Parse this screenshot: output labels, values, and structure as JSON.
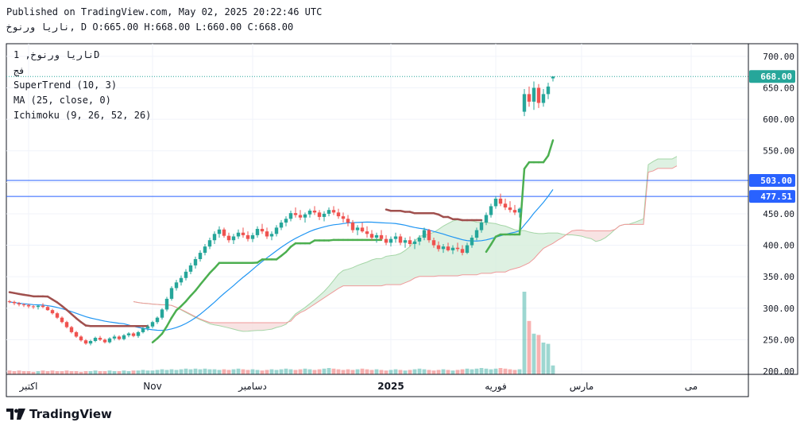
{
  "header": {
    "published": "Published on TradingView.com, May 02, 2025 20:22:46 UTC",
    "ohlc_line": "ناريا ورنوخ, D O:665.00 H:668.00 L:660.00 C:668.00"
  },
  "legend": {
    "symbol": "ناريا ورنوخ, 1D",
    "exchange": "فج",
    "supertrend": "SuperTrend (10, 3)",
    "ma": "MA (25, close, 0)",
    "ichimoku": "Ichimoku (9, 26, 52, 26)"
  },
  "brand": {
    "name": "TradingView",
    "text_color": "#131722"
  },
  "colors": {
    "up": "#26a69a",
    "down": "#ef5350",
    "supertrend_up": "#4caf50",
    "supertrend_down": "#a0504e",
    "ma": "#2196f3",
    "hline": "#2962ff",
    "cloud_up": "#d6eddb",
    "cloud_down": "#f6dcdc"
  },
  "chart_data": {
    "type": "candlestick",
    "ylim": [
      195,
      720
    ],
    "y_ticks": [
      200,
      250,
      300,
      350,
      400,
      450,
      500,
      550,
      600,
      650,
      700
    ],
    "y_tick_labels": [
      "200.00",
      "250.00",
      "300.00",
      "350.00",
      "400.00",
      "450.00",
      "500.00",
      "550.00",
      "600.00",
      "650.00",
      "700.00"
    ],
    "x_ticks": [
      {
        "label": "اکتبر",
        "index": 4
      },
      {
        "label": "Nov",
        "index": 30
      },
      {
        "label": "دسامبر",
        "index": 51
      },
      {
        "label": "2025",
        "index": 80
      },
      {
        "label": "فوریه",
        "index": 102
      },
      {
        "label": "مارس",
        "index": 120
      },
      {
        "label": "می",
        "index": 143
      }
    ],
    "price_labels": [
      {
        "value": 668,
        "text": "668.00",
        "color": "#26a69a"
      },
      {
        "value": 503,
        "text": "503.00",
        "color": "#2962ff"
      },
      {
        "value": 477.51,
        "text": "477.51",
        "color": "#2962ff"
      }
    ],
    "horizontal_lines": [
      503,
      477.51
    ],
    "last_price": 668,
    "candles": [
      [
        311,
        313,
        308,
        310
      ],
      [
        310,
        312,
        305,
        308
      ],
      [
        308,
        310,
        303,
        306
      ],
      [
        306,
        308,
        302,
        305
      ],
      [
        305,
        307,
        300,
        303
      ],
      [
        303,
        305,
        299,
        302
      ],
      [
        302,
        305,
        298,
        304
      ],
      [
        304,
        308,
        300,
        302
      ],
      [
        302,
        304,
        296,
        297
      ],
      [
        297,
        299,
        290,
        292
      ],
      [
        292,
        294,
        283,
        285
      ],
      [
        285,
        287,
        276,
        278
      ],
      [
        278,
        280,
        268,
        270
      ],
      [
        270,
        272,
        260,
        262
      ],
      [
        262,
        264,
        253,
        255
      ],
      [
        255,
        257,
        247,
        249
      ],
      [
        249,
        251,
        242,
        244
      ],
      [
        244,
        250,
        241,
        248
      ],
      [
        248,
        255,
        246,
        253
      ],
      [
        253,
        256,
        248,
        250
      ],
      [
        250,
        252,
        244,
        246
      ],
      [
        246,
        254,
        244,
        252
      ],
      [
        252,
        258,
        249,
        255
      ],
      [
        255,
        257,
        249,
        251
      ],
      [
        251,
        259,
        249,
        257
      ],
      [
        257,
        262,
        254,
        260
      ],
      [
        260,
        262,
        254,
        256
      ],
      [
        256,
        264,
        253,
        262
      ],
      [
        262,
        270,
        260,
        268
      ],
      [
        268,
        274,
        264,
        271
      ],
      [
        271,
        280,
        268,
        278
      ],
      [
        278,
        287,
        275,
        285
      ],
      [
        285,
        300,
        282,
        298
      ],
      [
        298,
        318,
        295,
        315
      ],
      [
        315,
        335,
        312,
        332
      ],
      [
        332,
        345,
        328,
        341
      ],
      [
        341,
        352,
        336,
        348
      ],
      [
        348,
        362,
        344,
        358
      ],
      [
        358,
        372,
        354,
        368
      ],
      [
        368,
        382,
        363,
        378
      ],
      [
        378,
        392,
        374,
        388
      ],
      [
        388,
        402,
        384,
        398
      ],
      [
        398,
        412,
        394,
        408
      ],
      [
        408,
        422,
        402,
        418
      ],
      [
        418,
        430,
        412,
        425
      ],
      [
        425,
        428,
        412,
        415
      ],
      [
        415,
        420,
        404,
        408
      ],
      [
        408,
        418,
        402,
        414
      ],
      [
        414,
        425,
        410,
        420
      ],
      [
        420,
        428,
        412,
        416
      ],
      [
        416,
        422,
        406,
        410
      ],
      [
        410,
        420,
        405,
        416
      ],
      [
        416,
        430,
        412,
        426
      ],
      [
        426,
        434,
        418,
        422
      ],
      [
        422,
        428,
        410,
        414
      ],
      [
        414,
        422,
        408,
        418
      ],
      [
        418,
        432,
        414,
        428
      ],
      [
        428,
        440,
        424,
        436
      ],
      [
        436,
        446,
        430,
        442
      ],
      [
        442,
        455,
        438,
        451
      ],
      [
        451,
        460,
        444,
        448
      ],
      [
        448,
        456,
        440,
        444
      ],
      [
        444,
        452,
        436,
        449
      ],
      [
        449,
        458,
        444,
        455
      ],
      [
        455,
        462,
        448,
        452
      ],
      [
        452,
        456,
        440,
        445
      ],
      [
        445,
        454,
        438,
        450
      ],
      [
        450,
        460,
        446,
        456
      ],
      [
        456,
        462,
        448,
        452
      ],
      [
        452,
        458,
        442,
        446
      ],
      [
        446,
        452,
        436,
        442
      ],
      [
        442,
        448,
        430,
        436
      ],
      [
        436,
        440,
        420,
        424
      ],
      [
        424,
        432,
        416,
        428
      ],
      [
        428,
        436,
        420,
        422
      ],
      [
        422,
        430,
        412,
        418
      ],
      [
        418,
        424,
        408,
        412
      ],
      [
        412,
        420,
        404,
        416
      ],
      [
        416,
        424,
        408,
        410
      ],
      [
        410,
        416,
        400,
        404
      ],
      [
        404,
        414,
        398,
        410
      ],
      [
        410,
        420,
        404,
        414
      ],
      [
        414,
        418,
        400,
        404
      ],
      [
        404,
        412,
        396,
        408
      ],
      [
        408,
        414,
        398,
        402
      ],
      [
        402,
        410,
        394,
        406
      ],
      [
        406,
        416,
        400,
        412
      ],
      [
        412,
        428,
        408,
        424
      ],
      [
        424,
        426,
        404,
        408
      ],
      [
        408,
        412,
        396,
        400
      ],
      [
        400,
        406,
        390,
        394
      ],
      [
        394,
        402,
        388,
        398
      ],
      [
        398,
        404,
        390,
        392
      ],
      [
        392,
        400,
        386,
        396
      ],
      [
        396,
        404,
        390,
        394
      ],
      [
        394,
        400,
        384,
        388
      ],
      [
        388,
        404,
        386,
        400
      ],
      [
        400,
        416,
        396,
        412
      ],
      [
        412,
        428,
        408,
        424
      ],
      [
        424,
        440,
        420,
        436
      ],
      [
        436,
        452,
        432,
        448
      ],
      [
        448,
        466,
        444,
        462
      ],
      [
        462,
        478,
        458,
        474
      ],
      [
        474,
        482,
        462,
        466
      ],
      [
        466,
        474,
        456,
        460
      ],
      [
        460,
        470,
        452,
        456
      ],
      [
        456,
        464,
        448,
        452
      ],
      [
        452,
        460,
        444,
        458
      ],
      [
        612,
        648,
        605,
        640
      ],
      [
        640,
        652,
        620,
        628
      ],
      [
        628,
        660,
        615,
        650
      ],
      [
        650,
        656,
        618,
        626
      ],
      [
        626,
        648,
        620,
        640
      ],
      [
        640,
        658,
        632,
        652
      ],
      [
        665,
        668,
        660,
        668
      ]
    ],
    "volume": [
      6,
      5,
      6,
      5,
      5,
      4,
      5,
      6,
      5,
      6,
      5,
      5,
      6,
      5,
      5,
      4,
      5,
      5,
      6,
      5,
      5,
      6,
      5,
      5,
      6,
      5,
      6,
      6,
      7,
      6,
      6,
      7,
      8,
      7,
      8,
      7,
      8,
      9,
      8,
      9,
      8,
      9,
      8,
      8,
      7,
      8,
      7,
      8,
      9,
      8,
      7,
      8,
      7,
      6,
      7,
      8,
      7,
      8,
      9,
      8,
      7,
      8,
      9,
      8,
      7,
      8,
      9,
      10,
      9,
      8,
      7,
      8,
      7,
      8,
      9,
      8,
      7,
      8,
      7,
      6,
      7,
      8,
      7,
      6,
      7,
      8,
      9,
      8,
      7,
      6,
      7,
      8,
      7,
      6,
      7,
      8,
      9,
      8,
      9,
      10,
      9,
      8,
      9,
      10,
      9,
      8,
      7,
      8,
      130,
      84,
      64,
      62,
      50,
      48,
      14
    ]
  }
}
